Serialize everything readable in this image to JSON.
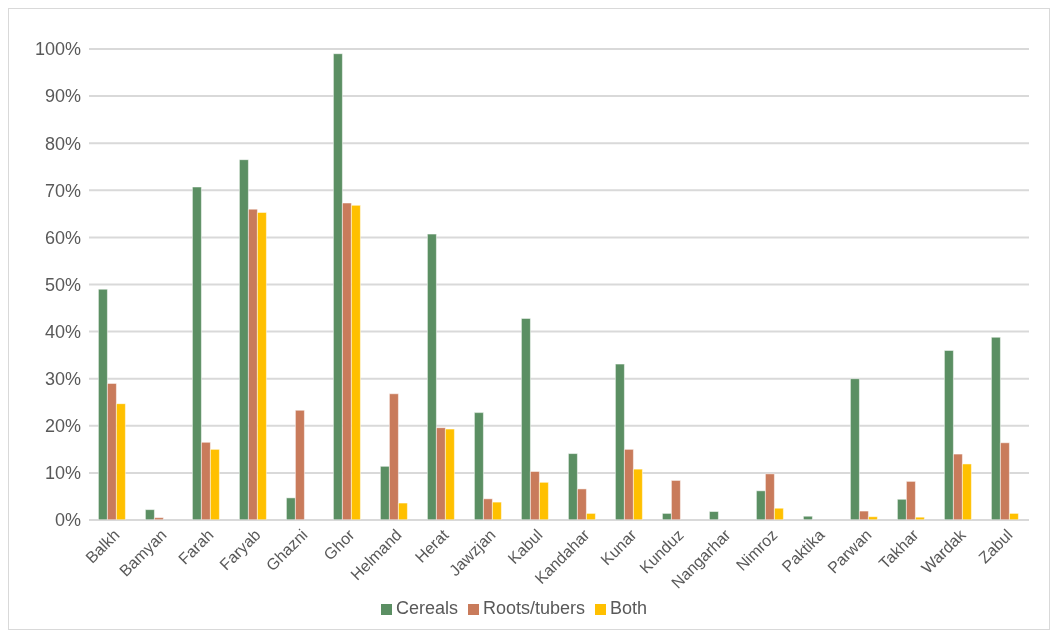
{
  "chart_data": {
    "type": "bar",
    "categories": [
      "Balkh",
      "Bamyan",
      "Farah",
      "Faryab",
      "Ghazni",
      "Ghor",
      "Helmand",
      "Herat",
      "Jawzjan",
      "Kabul",
      "Kandahar",
      "Kunar",
      "Kunduz",
      "Nangarhar",
      "Nimroz",
      "Paktika",
      "Parwan",
      "Takhar",
      "Wardak",
      "Zabul"
    ],
    "series": [
      {
        "name": "Cereals",
        "color": "#5b8f63",
        "values": [
          49,
          2.2,
          70.7,
          76.5,
          4.7,
          99,
          11.4,
          60.7,
          22.8,
          42.8,
          14.1,
          33.1,
          1.4,
          1.8,
          6.2,
          0.8,
          30,
          4.4,
          36,
          38.8
        ]
      },
      {
        "name": "Roots/tubers",
        "color": "#c97b5b",
        "values": [
          29,
          0.5,
          16.5,
          66,
          23.3,
          67.3,
          26.8,
          19.6,
          4.5,
          10.3,
          6.6,
          15,
          8.4,
          null,
          9.8,
          0,
          1.9,
          8.2,
          14,
          16.4
        ]
      },
      {
        "name": "Both",
        "color": "#ffc000",
        "values": [
          24.7,
          null,
          15,
          65.3,
          0,
          66.8,
          3.6,
          19.3,
          3.8,
          8,
          1.4,
          10.8,
          null,
          null,
          2.5,
          0,
          0.7,
          0.6,
          11.9,
          1.4
        ]
      }
    ],
    "ylim": [
      0,
      100
    ],
    "yticks": [
      {
        "value": 0,
        "label": "0%"
      },
      {
        "value": 10,
        "label": "10%"
      },
      {
        "value": 20,
        "label": "20%"
      },
      {
        "value": 30,
        "label": "30%"
      },
      {
        "value": 40,
        "label": "40%"
      },
      {
        "value": 50,
        "label": "50%"
      },
      {
        "value": 60,
        "label": "60%"
      },
      {
        "value": 70,
        "label": "70%"
      },
      {
        "value": 80,
        "label": "80%"
      },
      {
        "value": 90,
        "label": "90%"
      },
      {
        "value": 100,
        "label": "100%"
      }
    ],
    "grid": "y",
    "legend": "bottom"
  }
}
